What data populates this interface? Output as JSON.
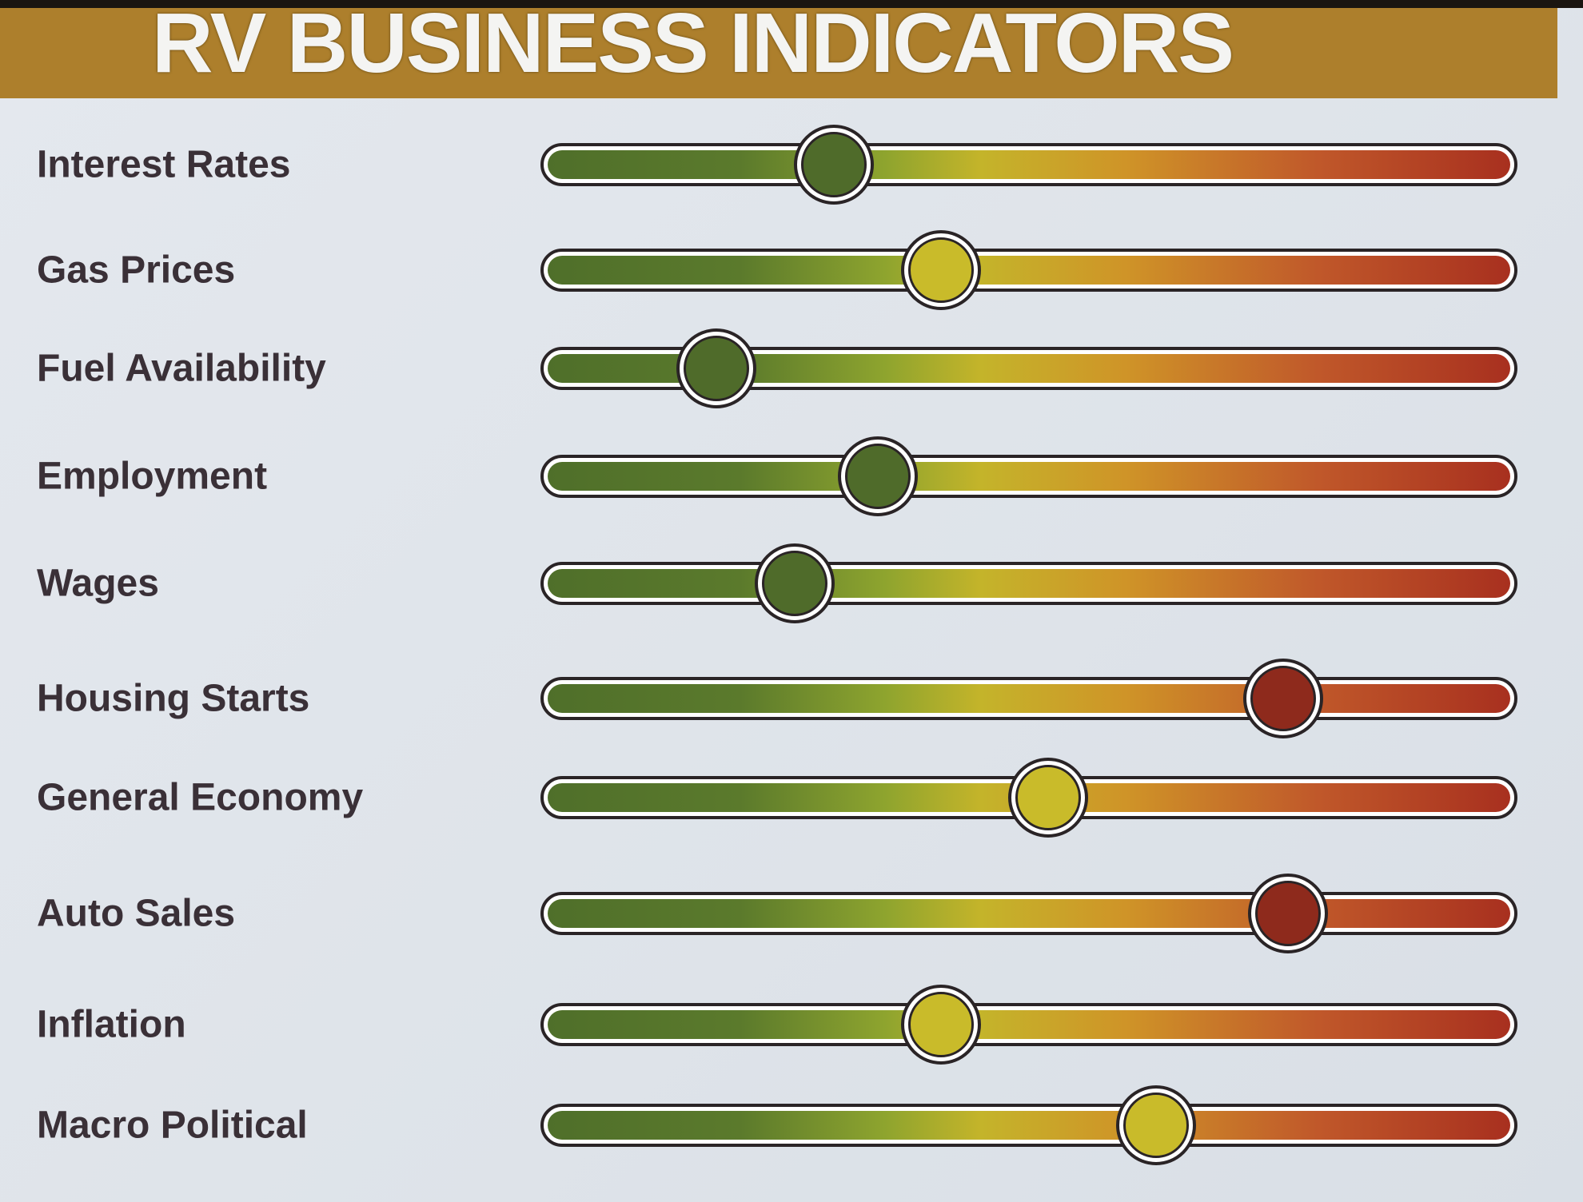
{
  "title": "RV BUSINESS INDICATORS",
  "colors": {
    "header": "#ad7f2c",
    "good": "#4f6b2a",
    "neutral": "#c9bb2a",
    "bad": "#8e2a1c"
  },
  "indicators": [
    {
      "label": "Interest Rates",
      "value": 0.3,
      "status": "good"
    },
    {
      "label": "Gas Prices",
      "value": 0.41,
      "status": "neutral"
    },
    {
      "label": "Fuel Availability",
      "value": 0.18,
      "status": "good"
    },
    {
      "label": "Employment",
      "value": 0.345,
      "status": "good"
    },
    {
      "label": "Wages",
      "value": 0.26,
      "status": "good"
    },
    {
      "label": "Housing Starts",
      "value": 0.76,
      "status": "bad"
    },
    {
      "label": "General Economy",
      "value": 0.52,
      "status": "neutral"
    },
    {
      "label": "Auto Sales",
      "value": 0.765,
      "status": "bad"
    },
    {
      "label": "Inflation",
      "value": 0.41,
      "status": "neutral"
    },
    {
      "label": "Macro Political",
      "value": 0.63,
      "status": "neutral"
    }
  ]
}
